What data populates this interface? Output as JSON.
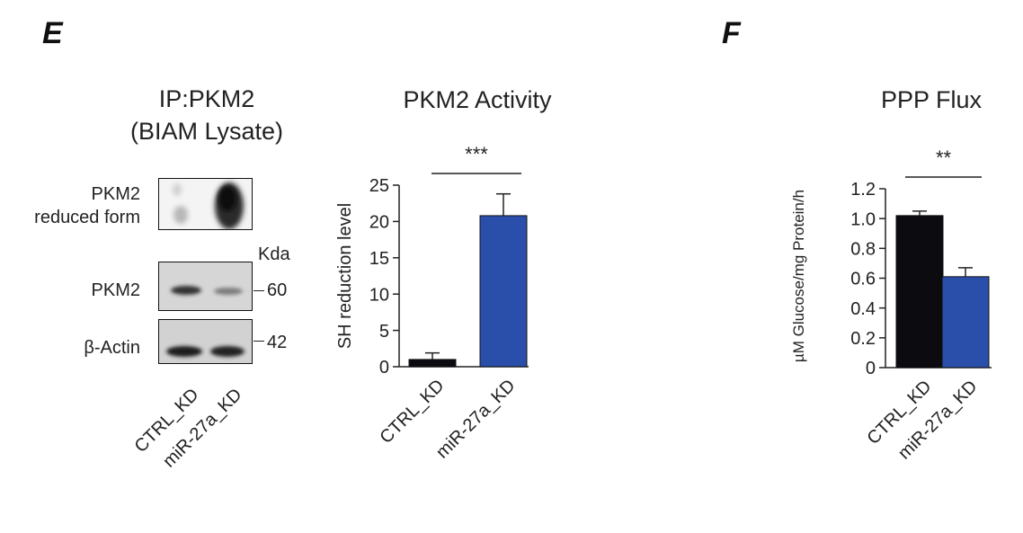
{
  "panels": {
    "E": "E",
    "F": "F"
  },
  "blot": {
    "title_line1": "IP:PKM2",
    "title_line2": "(BIAM Lysate)",
    "row_labels": {
      "reduced_line1": "PKM2",
      "reduced_line2": "reduced form",
      "pkm2": "PKM2",
      "actin": "β-Actin"
    },
    "mw_unit": "Kda",
    "mw_60": "60",
    "mw_42": "42",
    "lanes": [
      "CTRL_KD",
      "miR-27a_KD"
    ]
  },
  "colors": {
    "ctrl": "#0b0b10",
    "mir": "#2a4faa"
  },
  "chart_data": [
    {
      "type": "bar",
      "title": "PKM2 Activity",
      "ylabel": "SH reduction level",
      "xlabel": "",
      "categories": [
        "CTRL_KD",
        "miR-27a_KD"
      ],
      "values": [
        1.0,
        20.8
      ],
      "errors": [
        0.9,
        3.0
      ],
      "ylim": [
        0,
        25
      ],
      "yticks": [
        "0",
        "5",
        "10",
        "15",
        "20",
        "25"
      ],
      "significance": "***"
    },
    {
      "type": "bar",
      "title": "PPP Flux",
      "ylabel": "µM Glucose/mg Protein/h",
      "xlabel": "",
      "categories": [
        "CTRL_KD",
        "miR-27a_KD"
      ],
      "values": [
        1.02,
        0.61
      ],
      "errors": [
        0.03,
        0.06
      ],
      "ylim": [
        0,
        1.2
      ],
      "yticks": [
        "0",
        "0.2",
        "0.4",
        "0.6",
        "0.8",
        "1.0",
        "1.2"
      ],
      "significance": "**"
    }
  ]
}
